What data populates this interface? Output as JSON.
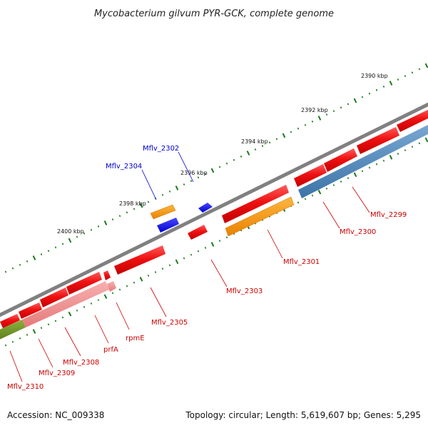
{
  "title": "Mycobacterium gilvum PYR-GCK, complete genome",
  "footer": {
    "accession": "Accession: NC_009338",
    "summary": "Topology: circular; Length: 5,619,607 bp; Genes: 5,295"
  },
  "ticks": [
    "2390 kbp",
    "2392 kbp",
    "2394 kbp",
    "2396 kbp",
    "2398 kbp",
    "2400 kbp"
  ],
  "genes": {
    "forward_blue": [
      "Mflv_2302",
      "Mflv_2304"
    ],
    "reverse": [
      "Mflv_2299",
      "Mflv_2300",
      "Mflv_2301",
      "Mflv_2303",
      "Mflv_2305",
      "rpmE",
      "prfA",
      "Mflv_2308",
      "Mflv_2309",
      "Mflv_2310"
    ]
  },
  "colors": {
    "cds_red": "#ee1111",
    "trna_orange": "#f5900a",
    "misc_blue": "#1010ee",
    "cog_steelblue": "#4a85b8",
    "cog_pink": "#ef8f8f",
    "cog_olive": "#6b8e23",
    "backbone": "#808080",
    "tick_green": "#1a7a1a",
    "label_red": "#cc0000",
    "label_blue": "#0000cc"
  }
}
